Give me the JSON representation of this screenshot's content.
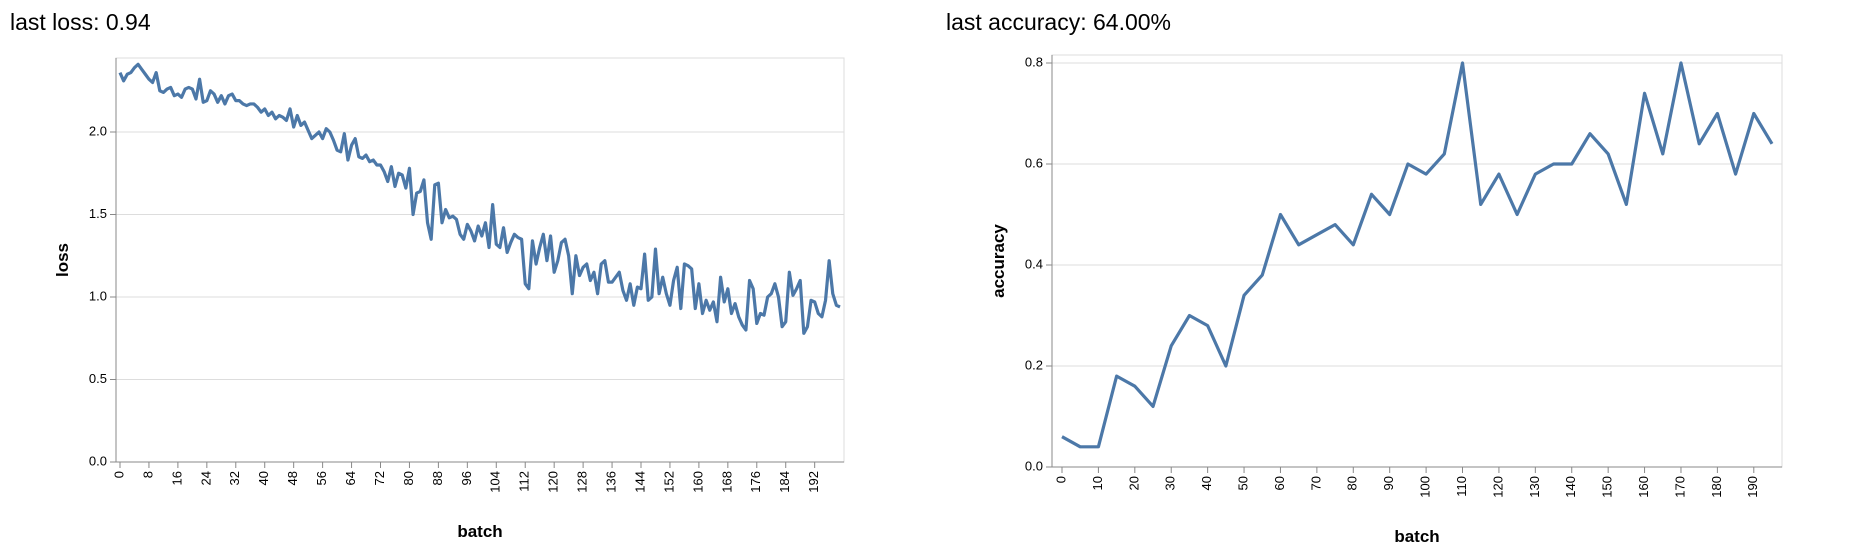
{
  "chart_data": [
    {
      "type": "line",
      "title": "last loss: 0.94",
      "x_label": "batch",
      "y_label": "loss",
      "color": "#4c78a8",
      "grid": true,
      "x": [
        0,
        1,
        2,
        3,
        4,
        5,
        6,
        7,
        8,
        9,
        10,
        11,
        12,
        13,
        14,
        15,
        16,
        17,
        18,
        19,
        20,
        21,
        22,
        23,
        24,
        25,
        26,
        27,
        28,
        29,
        30,
        31,
        32,
        33,
        34,
        35,
        36,
        37,
        38,
        39,
        40,
        41,
        42,
        43,
        44,
        45,
        46,
        47,
        48,
        49,
        50,
        51,
        52,
        53,
        54,
        55,
        56,
        57,
        58,
        59,
        60,
        61,
        62,
        63,
        64,
        65,
        66,
        67,
        68,
        69,
        70,
        71,
        72,
        73,
        74,
        75,
        76,
        77,
        78,
        79,
        80,
        81,
        82,
        83,
        84,
        85,
        86,
        87,
        88,
        89,
        90,
        91,
        92,
        93,
        94,
        95,
        96,
        97,
        98,
        99,
        100,
        101,
        102,
        103,
        104,
        105,
        106,
        107,
        108,
        109,
        110,
        111,
        112,
        113,
        114,
        115,
        116,
        117,
        118,
        119,
        120,
        121,
        122,
        123,
        124,
        125,
        126,
        127,
        128,
        129,
        130,
        131,
        132,
        133,
        134,
        135,
        136,
        137,
        138,
        139,
        140,
        141,
        142,
        143,
        144,
        145,
        146,
        147,
        148,
        149,
        150,
        151,
        152,
        153,
        154,
        155,
        156,
        157,
        158,
        159,
        160,
        161,
        162,
        163,
        164,
        165,
        166,
        167,
        168,
        169,
        170,
        171,
        172,
        173,
        174,
        175,
        176,
        177,
        178,
        179,
        180,
        181,
        182,
        183,
        184,
        185,
        186,
        187,
        188,
        189,
        190,
        191,
        192,
        193,
        194,
        195,
        196,
        197,
        198,
        199
      ],
      "values": [
        2.36,
        2.31,
        2.35,
        2.36,
        2.39,
        2.41,
        2.38,
        2.35,
        2.32,
        2.3,
        2.36,
        2.25,
        2.24,
        2.26,
        2.27,
        2.22,
        2.23,
        2.21,
        2.26,
        2.27,
        2.26,
        2.2,
        2.32,
        2.18,
        2.19,
        2.25,
        2.23,
        2.18,
        2.22,
        2.17,
        2.22,
        2.23,
        2.19,
        2.19,
        2.17,
        2.16,
        2.17,
        2.17,
        2.15,
        2.12,
        2.14,
        2.1,
        2.12,
        2.08,
        2.1,
        2.09,
        2.07,
        2.14,
        2.03,
        2.1,
        2.04,
        2.06,
        2.01,
        1.96,
        1.98,
        2.0,
        1.96,
        2.02,
        2.0,
        1.95,
        1.89,
        1.88,
        1.99,
        1.83,
        1.92,
        1.96,
        1.85,
        1.84,
        1.86,
        1.82,
        1.83,
        1.8,
        1.8,
        1.76,
        1.7,
        1.79,
        1.67,
        1.75,
        1.74,
        1.66,
        1.78,
        1.5,
        1.63,
        1.64,
        1.71,
        1.45,
        1.35,
        1.68,
        1.69,
        1.45,
        1.53,
        1.48,
        1.49,
        1.47,
        1.38,
        1.35,
        1.44,
        1.4,
        1.34,
        1.43,
        1.37,
        1.45,
        1.3,
        1.56,
        1.32,
        1.3,
        1.42,
        1.27,
        1.33,
        1.38,
        1.36,
        1.35,
        1.08,
        1.05,
        1.34,
        1.2,
        1.3,
        1.38,
        1.22,
        1.37,
        1.15,
        1.22,
        1.33,
        1.35,
        1.25,
        1.02,
        1.25,
        1.13,
        1.18,
        1.2,
        1.1,
        1.15,
        1.02,
        1.2,
        1.22,
        1.09,
        1.09,
        1.12,
        1.15,
        1.04,
        0.98,
        1.08,
        0.95,
        1.06,
        1.05,
        1.26,
        0.98,
        1.0,
        1.29,
        1.02,
        1.12,
        1.02,
        0.95,
        1.1,
        1.18,
        0.93,
        1.2,
        1.19,
        1.17,
        0.93,
        1.08,
        0.9,
        0.98,
        0.92,
        0.97,
        0.85,
        1.12,
        0.97,
        1.05,
        0.9,
        0.96,
        0.88,
        0.83,
        0.8,
        1.1,
        1.05,
        0.84,
        0.9,
        0.89,
        1.0,
        1.02,
        1.08,
        1.0,
        0.82,
        0.85,
        1.15,
        1.01,
        1.05,
        1.1,
        0.78,
        0.82,
        0.98,
        0.97,
        0.9,
        0.88,
        0.98,
        1.22,
        1.02,
        0.95,
        0.94
      ],
      "xlim": [
        0,
        199
      ],
      "xticks": [
        0,
        8,
        16,
        24,
        32,
        40,
        48,
        56,
        64,
        72,
        80,
        88,
        96,
        104,
        112,
        120,
        128,
        136,
        144,
        152,
        160,
        168,
        176,
        184,
        192
      ],
      "ylim": [
        0,
        2.4
      ],
      "yticks": [
        {
          "value": 0,
          "label": "0.0"
        },
        0.5,
        {
          "value": 1,
          "label": "1.0"
        },
        1.5,
        {
          "value": 2,
          "label": "2.0"
        }
      ]
    },
    {
      "type": "line",
      "title": "last accuracy: 64.00%",
      "x_label": "batch",
      "y_label": "accuracy",
      "color": "#4c78a8",
      "grid": true,
      "x": [
        0,
        5,
        10,
        15,
        20,
        25,
        30,
        35,
        40,
        45,
        50,
        55,
        60,
        65,
        70,
        75,
        80,
        85,
        90,
        95,
        100,
        105,
        110,
        115,
        120,
        125,
        130,
        135,
        140,
        145,
        150,
        155,
        160,
        165,
        170,
        175,
        180,
        185,
        190,
        195
      ],
      "values": [
        0.06,
        0.04,
        0.04,
        0.18,
        0.16,
        0.12,
        0.24,
        0.3,
        0.28,
        0.2,
        0.34,
        0.38,
        0.5,
        0.44,
        0.46,
        0.48,
        0.44,
        0.54,
        0.5,
        0.6,
        0.58,
        0.62,
        0.8,
        0.52,
        0.58,
        0.5,
        0.58,
        0.6,
        0.6,
        0.66,
        0.62,
        0.52,
        0.74,
        0.62,
        0.8,
        0.64,
        0.7,
        0.58,
        0.7,
        0.64
      ],
      "xlim": [
        0,
        195
      ],
      "xticks": [
        0,
        10,
        20,
        30,
        40,
        50,
        60,
        70,
        80,
        90,
        100,
        110,
        120,
        130,
        140,
        150,
        160,
        170,
        180,
        190
      ],
      "ylim": [
        0,
        0.8
      ],
      "yticks": [
        {
          "value": 0,
          "label": "0.0"
        },
        0.2,
        0.4,
        0.6,
        0.8
      ]
    }
  ]
}
